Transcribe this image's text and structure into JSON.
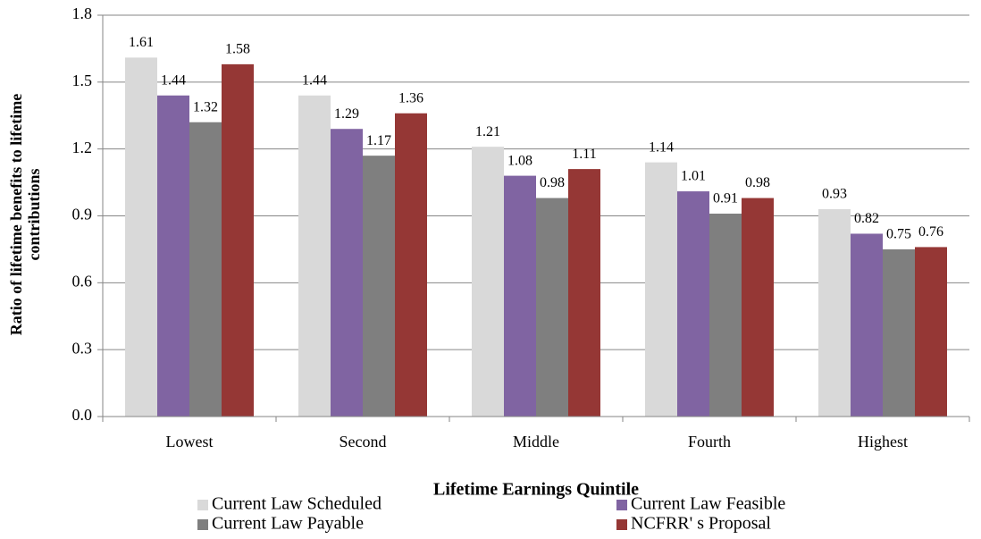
{
  "chart_data": {
    "type": "bar",
    "x_label": "Lifetime Earnings Quintile",
    "y_label": [
      "Ratio of lifetime benefits to lifetime",
      "contributions"
    ],
    "categories": [
      "Lowest",
      "Second",
      "Middle",
      "Fourth",
      "Highest"
    ],
    "series": [
      {
        "name": "Current Law Scheduled",
        "color": "#d9d9d9",
        "values": [
          1.61,
          1.44,
          1.21,
          1.14,
          0.93
        ]
      },
      {
        "name": "Current Law Feasible",
        "color": "#8064a2",
        "values": [
          1.44,
          1.29,
          1.08,
          1.01,
          0.82
        ]
      },
      {
        "name": "Current Law Payable",
        "color": "#7f7f7f",
        "values": [
          1.32,
          1.17,
          0.98,
          0.91,
          0.75
        ]
      },
      {
        "name": "NCFRR' s Proposal",
        "color": "#953735",
        "values": [
          1.58,
          1.36,
          1.11,
          0.98,
          0.76
        ]
      }
    ],
    "ylim": [
      0,
      1.8
    ],
    "yticks": [
      {
        "value": 0,
        "label": "0.0"
      },
      0.3,
      0.6,
      0.9,
      1.2,
      1.5,
      1.8
    ],
    "grid": true,
    "legend": "bottom"
  }
}
